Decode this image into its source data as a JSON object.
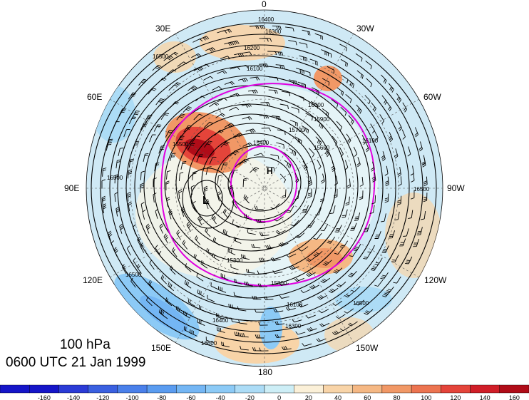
{
  "map": {
    "longitude_labels": [
      {
        "text": "0",
        "key": "lon-0"
      },
      {
        "text": "30W",
        "key": "lon-30w"
      },
      {
        "text": "60W",
        "key": "lon-60w"
      },
      {
        "text": "90W",
        "key": "lon-90w"
      },
      {
        "text": "120W",
        "key": "lon-120w"
      },
      {
        "text": "150W",
        "key": "lon-150w"
      },
      {
        "text": "180",
        "key": "lon-180"
      },
      {
        "text": "150E",
        "key": "lon-150e"
      },
      {
        "text": "120E",
        "key": "lon-120e"
      },
      {
        "text": "90E",
        "key": "lon-90e"
      },
      {
        "text": "60E",
        "key": "lon-60e"
      },
      {
        "text": "30E",
        "key": "lon-30e"
      }
    ],
    "contour_labels": [
      "16400",
      "16300",
      "16200",
      "16100",
      "16000",
      "15900",
      "15800",
      "15700",
      "15600",
      "15500",
      "15400",
      "15300",
      "16500",
      "16600"
    ],
    "low_marker": "L",
    "high_marker": "H"
  },
  "info": {
    "level": "100 hPa",
    "valid_time": "0600 UTC 21 Jan 1999"
  },
  "colorbar": {
    "tick_labels": [
      "-160",
      "-140",
      "-120",
      "-100",
      "-80",
      "-60",
      "-40",
      "-20",
      "0",
      "20",
      "40",
      "60",
      "80",
      "100",
      "120",
      "140",
      "160"
    ],
    "colors": [
      "#1515c8",
      "#2b3bd6",
      "#3a60e0",
      "#4a80ea",
      "#5a9cf0",
      "#74b6f4",
      "#8ccaf6",
      "#acdcf6",
      "#cdeef6",
      "#fbf0d8",
      "#f8d4a8",
      "#f5b884",
      "#f19866",
      "#ec7450",
      "#e4443a",
      "#d01e28",
      "#b00c18"
    ]
  }
}
